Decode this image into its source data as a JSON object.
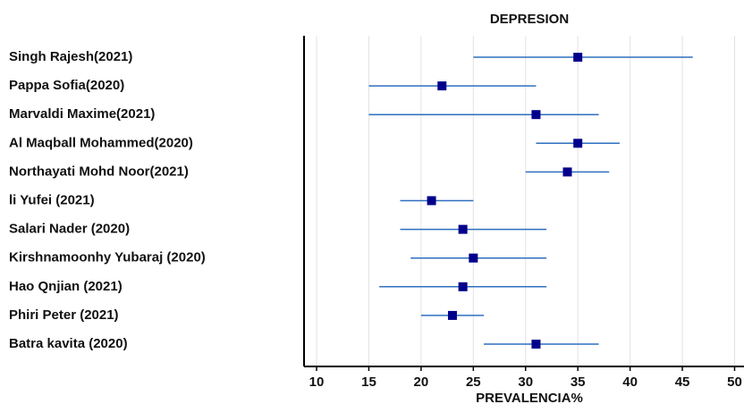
{
  "chart_data": {
    "type": "forest",
    "title": "DEPRESION",
    "x_label": "PREVALENCIA%",
    "categories": [
      "Singh Rajesh(2021)",
      "Pappa Sofia(2020)",
      "Marvaldi Maxime(2021)",
      "Al Maqball Mohammed(2020)",
      "Northayati Mohd Noor(2021)",
      "li Yufei (2021)",
      "Salari Nader (2020)",
      "Kirshnamoonhy Yubaraj (2020)",
      "Hao Qnjian (2021)",
      "Phiri Peter (2021)",
      "Batra kavita (2020)"
    ],
    "series": [
      {
        "color": "#00008b",
        "line_color": "#2f6fbf",
        "values": [
          35,
          22,
          31,
          35,
          34,
          21,
          24,
          25,
          24,
          23,
          31
        ],
        "lower": [
          25,
          15,
          15,
          31,
          30,
          18,
          18,
          19,
          16,
          20,
          26
        ],
        "upper": [
          46,
          31,
          37,
          39,
          38,
          25,
          32,
          32,
          32,
          26,
          37
        ]
      }
    ],
    "xlim": [
      8.8,
      50.9
    ],
    "xticks": [
      10,
      15,
      20,
      25,
      30,
      35,
      40,
      45,
      50
    ],
    "grid": true
  }
}
